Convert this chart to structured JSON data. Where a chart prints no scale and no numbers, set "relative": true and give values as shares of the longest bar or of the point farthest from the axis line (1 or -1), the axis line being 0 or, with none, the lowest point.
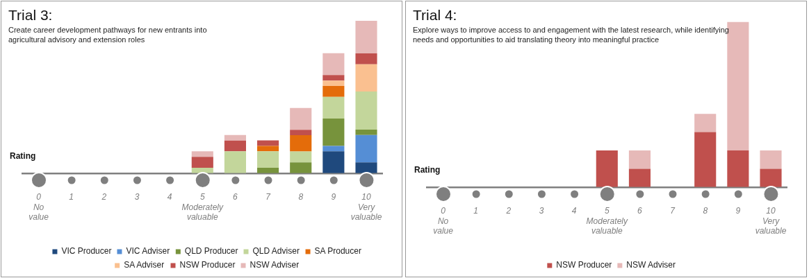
{
  "chart_data": [
    {
      "type": "bar",
      "title": "Trial 3:",
      "subtitle": "Create career development  pathways for new entrants into agricultural advisory and extension roles",
      "xlabel": "Rating",
      "stacked": true,
      "relative": true,
      "legend": "bottom",
      "grid": false,
      "categories": [
        "0\nNo value",
        "1",
        "2",
        "3",
        "4",
        "5\nModerately valuable",
        "6",
        "7",
        "8",
        "9",
        "10\nVery valuable"
      ],
      "series": [
        {
          "name": "VIC Producer",
          "color": "#1f497d",
          "values": [
            0,
            0,
            0,
            0,
            0,
            0,
            0,
            0,
            0,
            0.143,
            0.071
          ]
        },
        {
          "name": "VIC Adviser",
          "color": "#558ed5",
          "values": [
            0,
            0,
            0,
            0,
            0,
            0,
            0,
            0,
            0,
            0.036,
            0.179
          ]
        },
        {
          "name": "QLD Producer",
          "color": "#77933c",
          "values": [
            0,
            0,
            0,
            0,
            0,
            0,
            0,
            0.036,
            0.071,
            0.179,
            0.036
          ]
        },
        {
          "name": "QLD Adviser",
          "color": "#c3d69b",
          "values": [
            0,
            0,
            0,
            0,
            0,
            0.036,
            0.143,
            0.107,
            0.071,
            0.143,
            0.25
          ]
        },
        {
          "name": "SA Producer",
          "color": "#e46c0a",
          "values": [
            0,
            0,
            0,
            0,
            0,
            0,
            0,
            0.036,
            0.107,
            0.071,
            0
          ]
        },
        {
          "name": "SA Adviser",
          "color": "#fac090",
          "values": [
            0,
            0,
            0,
            0,
            0,
            0,
            0,
            0,
            0,
            0.036,
            0.179
          ]
        },
        {
          "name": "NSW Producer",
          "color": "#c0504d",
          "values": [
            0,
            0,
            0,
            0,
            0,
            0.071,
            0.071,
            0.036,
            0.036,
            0.036,
            0.071
          ]
        },
        {
          "name": "NSW Adviser",
          "color": "#e6b9b8",
          "values": [
            0,
            0,
            0,
            0,
            0,
            0.036,
            0.036,
            0,
            0.143,
            0.143,
            0.214
          ]
        }
      ]
    },
    {
      "type": "bar",
      "title": "Trial 4:",
      "subtitle": "Explore ways to improve access to and engagement with the latest research, while identifying needs and opportunities to aid translating theory into meaningful practice",
      "xlabel": "Rating",
      "stacked": true,
      "relative": true,
      "legend": "bottom",
      "grid": false,
      "categories": [
        "0\nNo value",
        "1",
        "2",
        "3",
        "4",
        "5\nModerately valuable",
        "6",
        "7",
        "8",
        "9",
        "10\nVery valuable"
      ],
      "series": [
        {
          "name": "NSW Producer",
          "color": "#c0504d",
          "values": [
            0,
            0,
            0,
            0,
            0,
            0.222,
            0.111,
            0,
            0.333,
            0.222,
            0.111
          ]
        },
        {
          "name": "NSW Adviser",
          "color": "#e6b9b8",
          "values": [
            0,
            0,
            0,
            0,
            0,
            0,
            0.111,
            0,
            0.111,
            0.778,
            0.111
          ]
        }
      ]
    }
  ]
}
